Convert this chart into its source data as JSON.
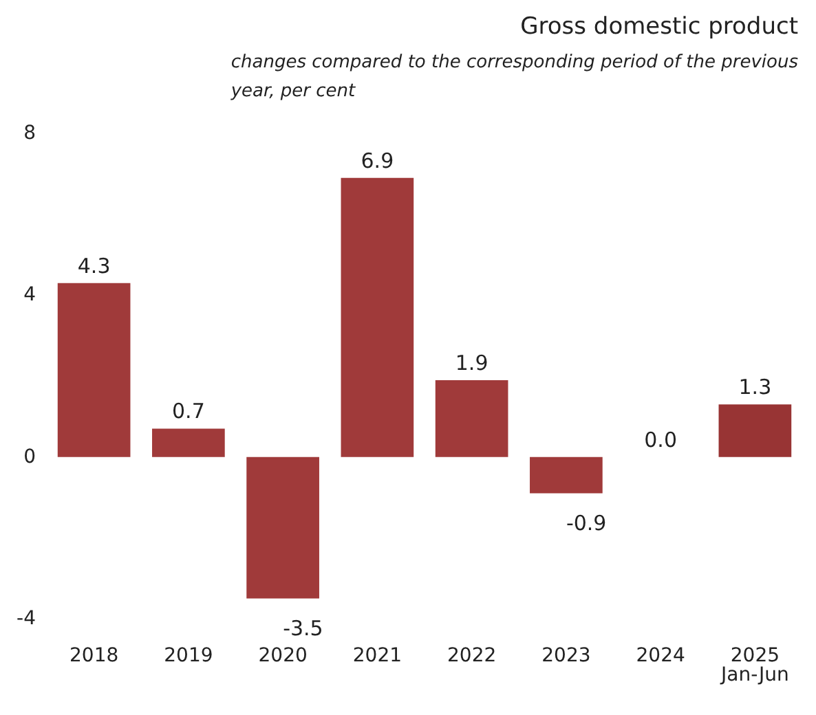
{
  "chart_data": {
    "type": "bar",
    "title": "Gross domestic product",
    "subtitle": "changes compared to the corresponding period of the previous year, per cent",
    "categories": [
      "2018",
      "2019",
      "2020",
      "2021",
      "2022",
      "2023",
      "2024",
      "2025\nJan-Jun"
    ],
    "values": [
      4.3,
      0.7,
      -3.5,
      6.9,
      1.9,
      -0.9,
      0.0,
      1.3
    ],
    "colors": [
      "#a03a3a",
      "#a03a3a",
      "#a03a3a",
      "#a03a3a",
      "#a03a3a",
      "#a03a3a",
      "#a03a3a",
      "#983434"
    ],
    "value_labels": [
      "4.3",
      "0.7",
      "-3.5",
      "6.9",
      "1.9",
      "-0.9",
      "0.0",
      "1.3"
    ],
    "ylim": [
      -4,
      8
    ],
    "yticks": [
      -4,
      0,
      4,
      8
    ],
    "grid": false
  }
}
